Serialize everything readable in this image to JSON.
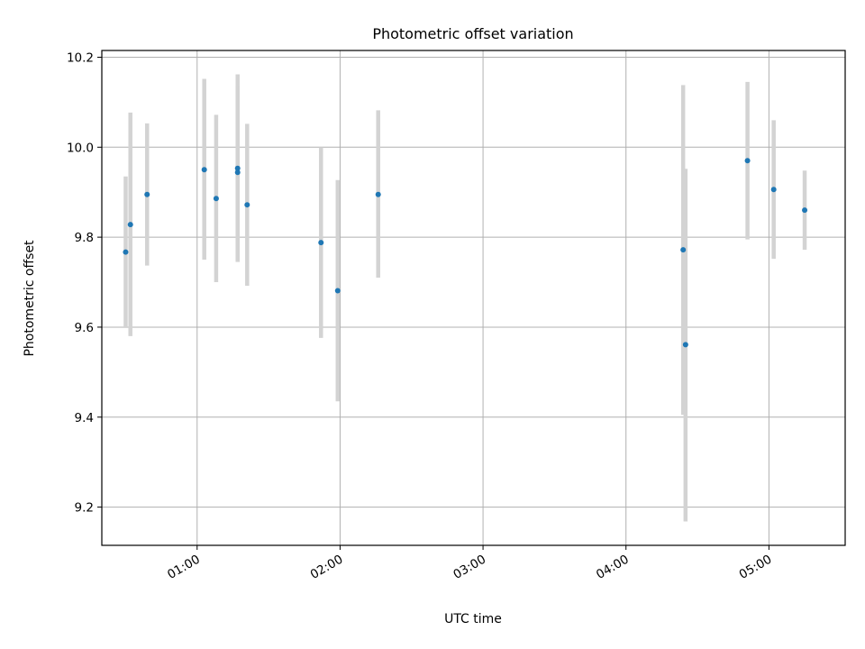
{
  "chart_data": {
    "type": "scatter",
    "title": "Photometric offset variation",
    "xlabel": "UTC time",
    "ylabel": "Photometric offset",
    "xlim": [
      "00:20",
      "05:32"
    ],
    "ylim": [
      9.115,
      10.215
    ],
    "x_ticks": [
      "01:00",
      "02:00",
      "03:00",
      "04:00",
      "05:00"
    ],
    "y_ticks": [
      "9.2",
      "9.4",
      "9.6",
      "9.8",
      "10.0",
      "10.2"
    ],
    "grid": true,
    "point_color": "#1f77b4",
    "errorbar_color": "#d3d3d3",
    "points": [
      {
        "time": "00:30",
        "y": 9.767,
        "yerr_low": 9.6,
        "yerr_high": 9.935
      },
      {
        "time": "00:32",
        "y": 9.828,
        "yerr_low": 9.58,
        "yerr_high": 10.077
      },
      {
        "time": "00:39",
        "y": 9.895,
        "yerr_low": 9.737,
        "yerr_high": 10.053
      },
      {
        "time": "01:03",
        "y": 9.95,
        "yerr_low": 9.75,
        "yerr_high": 10.152
      },
      {
        "time": "01:08",
        "y": 9.886,
        "yerr_low": 9.7,
        "yerr_high": 10.072
      },
      {
        "time": "01:17",
        "y": 9.944,
        "yerr_low": 9.75,
        "yerr_high": 10.137
      },
      {
        "time": "01:17",
        "y": 9.953,
        "yerr_low": 9.745,
        "yerr_high": 10.162
      },
      {
        "time": "01:21",
        "y": 9.872,
        "yerr_low": 9.692,
        "yerr_high": 10.052
      },
      {
        "time": "01:52",
        "y": 9.788,
        "yerr_low": 9.576,
        "yerr_high": 10.0
      },
      {
        "time": "01:59",
        "y": 9.681,
        "yerr_low": 9.435,
        "yerr_high": 9.927
      },
      {
        "time": "02:16",
        "y": 9.895,
        "yerr_low": 9.71,
        "yerr_high": 10.082
      },
      {
        "time": "04:24",
        "y": 9.772,
        "yerr_low": 9.405,
        "yerr_high": 10.138
      },
      {
        "time": "04:25",
        "y": 9.561,
        "yerr_low": 9.168,
        "yerr_high": 9.952
      },
      {
        "time": "04:51",
        "y": 9.97,
        "yerr_low": 9.795,
        "yerr_high": 10.145
      },
      {
        "time": "05:02",
        "y": 9.906,
        "yerr_low": 9.752,
        "yerr_high": 10.06
      },
      {
        "time": "05:15",
        "y": 9.86,
        "yerr_low": 9.772,
        "yerr_high": 9.948
      }
    ]
  }
}
